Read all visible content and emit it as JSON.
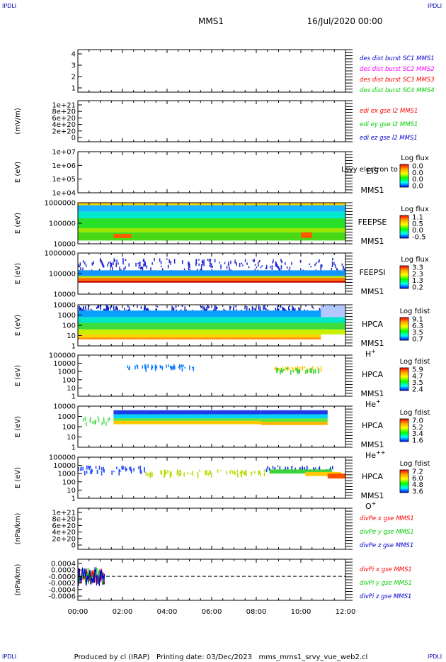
{
  "corners": {
    "label": "IPDLI"
  },
  "header": {
    "spacecraft": "MMS1",
    "datetime": "16/Jul/2020 00:00"
  },
  "footer": {
    "text": "Produced by cl (IRAP)   Printing date: 03/Dec/2023   mms_mms1_srvy_vue_web2.cl"
  },
  "time_axis": {
    "ticks": [
      "00:00",
      "02:00",
      "04:00",
      "06:00",
      "08:00",
      "10:00",
      "12:00"
    ],
    "range_hours": [
      0,
      12
    ]
  },
  "colors": {
    "red": "#ff0000",
    "green": "#00cc00",
    "blue": "#0000cc",
    "magenta": "#ff00ff",
    "navy": "#0000aa"
  },
  "chart_data": [
    {
      "id": "des",
      "type": "line",
      "ylabel": "",
      "yticks": [
        "4",
        "3",
        "2",
        "1"
      ],
      "ylim": [
        0.5,
        4.5
      ],
      "series": [
        {
          "name": "des dist burst SC1 MMS1",
          "color": "#0000cc"
        },
        {
          "name": "des dist burst SC2 MMS2",
          "color": "#ff00ff"
        },
        {
          "name": "des dist burst SC3 MMS3",
          "color": "#ff0000"
        },
        {
          "name": "des dist burst SC4 MMS4",
          "color": "#00cc00"
        }
      ]
    },
    {
      "id": "edi",
      "type": "line",
      "ylabel": "(mV/m)",
      "yticks": [
        "1e+21",
        "8e+20",
        "6e+20",
        "4e+20",
        "2e+20",
        "0"
      ],
      "ylim": [
        0,
        1e+21
      ],
      "zero_line": true,
      "series": [
        {
          "name": "edi ex gse l2 MMS1",
          "color": "#ff0000"
        },
        {
          "name": "edi ey gse l2 MMS1",
          "color": "#00cc00"
        },
        {
          "name": "edi ez gse l2 MMS1",
          "color": "#0000cc"
        }
      ]
    },
    {
      "id": "eis",
      "type": "heatmap",
      "ylabel": "E (eV)",
      "yticks": [
        "1e+07",
        "1e+06",
        "1e+05",
        "1e+04"
      ],
      "instrument": "EIS",
      "spacecraft": "MMS1",
      "overlay": "Lsvy electron to",
      "colorbar": {
        "title": "Log flux",
        "ticks": [
          "0.0",
          "0.0",
          "0.0",
          "0.0"
        ]
      },
      "bands": []
    },
    {
      "id": "feepse",
      "type": "heatmap",
      "ylabel": "E (eV)",
      "yticks": [
        "1000000",
        "100000",
        "10000"
      ],
      "instrument": "FEEPSE",
      "spacecraft": "MMS1",
      "colorbar": {
        "title": "Log flux",
        "ticks": [
          "1.1",
          "0.5",
          "0.0",
          "-0.5"
        ]
      },
      "bands": [
        {
          "t": [
            0,
            12
          ],
          "f": [
            0.0,
            0.06
          ],
          "color": "#ffd200"
        },
        {
          "t": [
            0,
            12
          ],
          "f": [
            0.06,
            0.22
          ],
          "color": "#19b4ff"
        },
        {
          "t": [
            0,
            12
          ],
          "f": [
            0.22,
            0.38
          ],
          "color": "#00e8d0"
        },
        {
          "t": [
            0,
            12
          ],
          "f": [
            0.38,
            0.62
          ],
          "color": "#28e028"
        },
        {
          "t": [
            0,
            12
          ],
          "f": [
            0.62,
            0.72
          ],
          "color": "#9be600"
        },
        {
          "t": [
            0,
            12
          ],
          "f": [
            0.72,
            0.92
          ],
          "color": "#48d818"
        },
        {
          "t": [
            1.6,
            2.4
          ],
          "f": [
            0.76,
            0.86
          ],
          "color": "#ff5a00"
        },
        {
          "t": [
            10.0,
            10.5
          ],
          "f": [
            0.72,
            0.86
          ],
          "color": "#ff5a00"
        }
      ]
    },
    {
      "id": "feepsi",
      "type": "heatmap",
      "ylabel": "E (eV)",
      "yticks": [
        "1000000",
        "100000",
        "10000"
      ],
      "instrument": "FEEPSI",
      "spacecraft": "MMS1",
      "colorbar": {
        "title": "Log flux",
        "ticks": [
          "3.3",
          "2.3",
          "1.3",
          "0.2"
        ]
      },
      "bands": [
        {
          "t": [
            0,
            12
          ],
          "f": [
            0.12,
            0.42
          ],
          "color": "#1e28d2",
          "speckle": true
        },
        {
          "t": [
            0,
            12
          ],
          "f": [
            0.42,
            0.56
          ],
          "color": "#1496ff"
        },
        {
          "t": [
            0,
            12
          ],
          "f": [
            0.56,
            0.6
          ],
          "color": "#b4f000"
        },
        {
          "t": [
            0,
            12
          ],
          "f": [
            0.6,
            0.68
          ],
          "color": "#ff7800"
        },
        {
          "t": [
            0,
            12
          ],
          "f": [
            0.68,
            0.72
          ],
          "color": "#c80000"
        }
      ]
    },
    {
      "id": "hpca_h",
      "type": "heatmap",
      "ylabel": "E (eV)",
      "yticks": [
        "10000",
        "1000",
        "100",
        "10",
        "1"
      ],
      "instrument": "HPCA",
      "spacecraft": "MMS1",
      "species": "H",
      "species_sup": "+",
      "colorbar": {
        "title": "Log fdist",
        "ticks": [
          "9.1",
          "6.3",
          "3.5",
          "0.7"
        ]
      },
      "bands": [
        {
          "t": [
            0,
            12
          ],
          "f": [
            0.0,
            0.14
          ],
          "color": "#0a1ec8",
          "speckle": true
        },
        {
          "t": [
            0,
            12
          ],
          "f": [
            0.14,
            0.3
          ],
          "color": "#0aa0ff"
        },
        {
          "t": [
            0,
            12
          ],
          "f": [
            0.3,
            0.44
          ],
          "color": "#00e6c8"
        },
        {
          "t": [
            0,
            12
          ],
          "f": [
            0.44,
            0.6
          ],
          "color": "#3cdc3c"
        },
        {
          "t": [
            0,
            12
          ],
          "f": [
            0.6,
            0.72
          ],
          "color": "#c8f000"
        },
        {
          "t": [
            0,
            10.9
          ],
          "f": [
            0.72,
            0.8
          ],
          "color": "#ffd200"
        },
        {
          "t": [
            0,
            10.9
          ],
          "f": [
            0.8,
            0.84
          ],
          "color": "#ff8c00"
        },
        {
          "t": [
            10.9,
            12
          ],
          "f": [
            0.0,
            0.3
          ],
          "color": "#b4c8ff"
        }
      ]
    },
    {
      "id": "hpca_he",
      "type": "heatmap",
      "ylabel": "E (eV)",
      "yticks": [
        "100000",
        "10000",
        "1000",
        "100",
        "10",
        "1"
      ],
      "instrument": "HPCA",
      "spacecraft": "MMS1",
      "species": "He",
      "species_sup": "+",
      "colorbar": {
        "title": "Log fdist",
        "ticks": [
          "5.9",
          "4.7",
          "3.5",
          "2.4"
        ]
      },
      "bands": [
        {
          "t": [
            2.2,
            5.2
          ],
          "f": [
            0.22,
            0.3
          ],
          "color": "#0a78ff",
          "speckle": true
        },
        {
          "t": [
            8.8,
            10.9
          ],
          "f": [
            0.26,
            0.34
          ],
          "color": "#ffc800",
          "speckle": true
        },
        {
          "t": [
            8.8,
            10.9
          ],
          "f": [
            0.3,
            0.38
          ],
          "color": "#32d232",
          "speckle": true
        }
      ]
    },
    {
      "id": "hpca_he2",
      "type": "heatmap",
      "ylabel": "E (eV)",
      "yticks": [
        "10000",
        "1000",
        "100",
        "10",
        "1"
      ],
      "instrument": "HPCA",
      "spacecraft": "MMS1",
      "species": "He",
      "species_sup": "++",
      "colorbar": {
        "title": "Log fdist",
        "ticks": [
          "7.0",
          "5.2",
          "3.4",
          "1.6"
        ]
      },
      "bands": [
        {
          "t": [
            1.6,
            8.2
          ],
          "f": [
            0.1,
            0.2
          ],
          "color": "#1e3ce6"
        },
        {
          "t": [
            1.6,
            8.2
          ],
          "f": [
            0.2,
            0.3
          ],
          "color": "#00d2ff"
        },
        {
          "t": [
            1.6,
            8.2
          ],
          "f": [
            0.3,
            0.36
          ],
          "color": "#64e632"
        },
        {
          "t": [
            1.6,
            8.2
          ],
          "f": [
            0.36,
            0.44
          ],
          "color": "#ffc800"
        },
        {
          "t": [
            8.2,
            11.2
          ],
          "f": [
            0.1,
            0.2
          ],
          "color": "#1e3ce6"
        },
        {
          "t": [
            8.2,
            11.2
          ],
          "f": [
            0.2,
            0.3
          ],
          "color": "#00d2ff"
        },
        {
          "t": [
            8.2,
            11.2
          ],
          "f": [
            0.3,
            0.38
          ],
          "color": "#64e632"
        },
        {
          "t": [
            8.2,
            11.2
          ],
          "f": [
            0.38,
            0.46
          ],
          "color": "#ffb400"
        },
        {
          "t": [
            0.2,
            1.4
          ],
          "f": [
            0.24,
            0.4
          ],
          "color": "#50dc50",
          "speckle": true
        }
      ]
    },
    {
      "id": "hpca_o",
      "type": "heatmap",
      "ylabel": "E (eV)",
      "yticks": [
        "100000",
        "10000",
        "1000",
        "100",
        "10",
        "1"
      ],
      "instrument": "HPCA",
      "spacecraft": "MMS1",
      "species": "O",
      "species_sup": "+",
      "colorbar": {
        "title": "Log fdist",
        "ticks": [
          "7.2",
          "6.0",
          "4.8",
          "3.6"
        ]
      },
      "bands": [
        {
          "t": [
            0,
            3.0
          ],
          "f": [
            0.2,
            0.34
          ],
          "color": "#1e46ff",
          "speckle": true
        },
        {
          "t": [
            3.0,
            8.4
          ],
          "f": [
            0.3,
            0.4
          ],
          "color": "#b4dc00",
          "speckle": true
        },
        {
          "t": [
            8.4,
            11.4
          ],
          "f": [
            0.2,
            0.3
          ],
          "color": "#0a32dc",
          "speckle": true
        },
        {
          "t": [
            8.6,
            11.4
          ],
          "f": [
            0.3,
            0.4
          ],
          "color": "#3cd23c"
        },
        {
          "t": [
            10.2,
            11.8
          ],
          "f": [
            0.36,
            0.46
          ],
          "color": "#ffc800"
        },
        {
          "t": [
            11.2,
            12
          ],
          "f": [
            0.4,
            0.52
          ],
          "color": "#ff5000"
        }
      ]
    },
    {
      "id": "divpe",
      "type": "line",
      "ylabel": "(nPa/km)",
      "yticks": [
        "1e+21",
        "8e+20",
        "6e+20",
        "4e+20",
        "2e+20",
        "0"
      ],
      "ylim": [
        0,
        1e+21
      ],
      "zero_line": true,
      "series": [
        {
          "name": "divPe x gse MMS1",
          "color": "#ff0000"
        },
        {
          "name": "divPe y gse MMS1",
          "color": "#00cc00"
        },
        {
          "name": "divPe z gse MMS1",
          "color": "#0000cc"
        }
      ]
    },
    {
      "id": "divpi",
      "type": "line",
      "ylabel": "(nPa/km)",
      "yticks": [
        "0.0004",
        "0.0002",
        "-0.0000",
        "-0.0002",
        "-0.0004",
        "-0.0006"
      ],
      "ylim": [
        -0.0007,
        0.0005
      ],
      "zero_line": true,
      "noise": {
        "t": [
          0,
          1.2
        ],
        "amp": 0.0003
      },
      "series": [
        {
          "name": "divPi x gse MMS1",
          "color": "#ff0000"
        },
        {
          "name": "divPi y gse MMS1",
          "color": "#00cc00"
        },
        {
          "name": "divPi z gse MMS1",
          "color": "#0000cc"
        }
      ]
    }
  ]
}
